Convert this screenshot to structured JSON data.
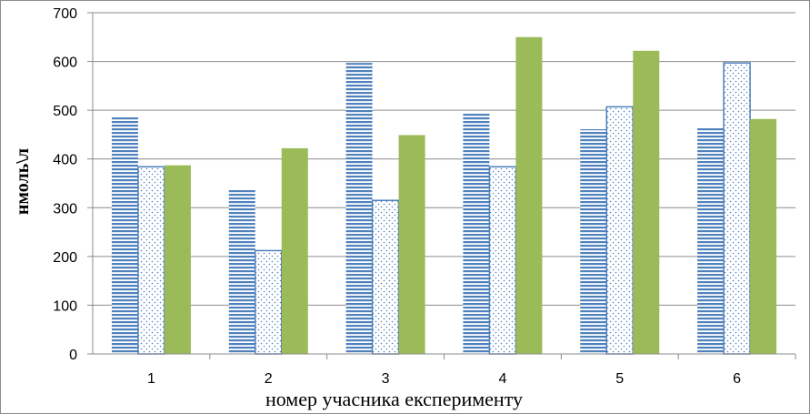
{
  "chart_data": {
    "type": "bar",
    "title": "",
    "xlabel": "номер учасника експерименту",
    "ylabel": "нмоль\\л",
    "categories": [
      "1",
      "2",
      "3",
      "4",
      "5",
      "6"
    ],
    "ylim": [
      0,
      700
    ],
    "yticks": [
      0,
      100,
      200,
      300,
      400,
      500,
      600,
      700
    ],
    "grid": true,
    "legend": "none",
    "series": [
      {
        "pattern": "horizontal-stripes",
        "color": "#4f81bd",
        "values": [
          487,
          337,
          597,
          494,
          461,
          464
        ]
      },
      {
        "pattern": "dotted",
        "color": "#4f81bd",
        "values": [
          384,
          212,
          315,
          384,
          507,
          597
        ]
      },
      {
        "pattern": "solid",
        "color": "#9bbb59",
        "values": [
          387,
          422,
          449,
          650,
          622,
          482
        ]
      }
    ]
  }
}
